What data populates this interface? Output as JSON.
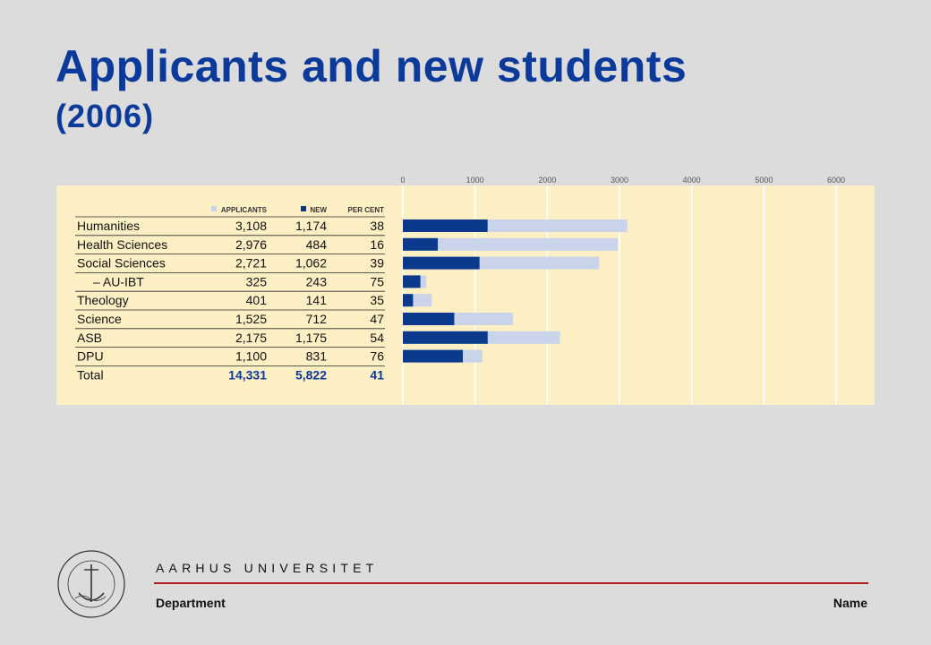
{
  "slide": {
    "title": "Applicants and new students",
    "subtitle": "(2006)"
  },
  "footer": {
    "university": "AARHUS UNIVERSITET",
    "department": "Department",
    "name": "Name",
    "seal_text": "SOLIDUM PETIT IN PROFUNDIS · UNIVERSITAS ARHUSIENSIS",
    "accent_color": "#b11d1d"
  },
  "chart_data": {
    "type": "bar",
    "orientation": "horizontal",
    "stacked_overlay": true,
    "column_headers": [
      "APPLICANTS",
      "NEW",
      "PER CENT"
    ],
    "categories": [
      "Humanities",
      "Health Sciences",
      "Social Sciences",
      "– AU-IBT",
      "Theology",
      "Science",
      "ASB",
      "DPU"
    ],
    "series": [
      {
        "name": "APPLICANTS",
        "color": "#c9d3ea",
        "values": [
          3108,
          2976,
          2721,
          325,
          401,
          1525,
          2175,
          1100
        ]
      },
      {
        "name": "NEW",
        "color": "#0b3a8c",
        "values": [
          1174,
          484,
          1062,
          243,
          141,
          712,
          1175,
          831
        ]
      }
    ],
    "table": {
      "applicants": [
        "3,108",
        "2,976",
        "2,721",
        "325",
        "401",
        "1,525",
        "2,175",
        "1,100"
      ],
      "new": [
        "1,174",
        "484",
        "1,062",
        "243",
        "141",
        "712",
        "1,175",
        "831"
      ],
      "per_cent": [
        "38",
        "16",
        "39",
        "75",
        "35",
        "47",
        "54",
        "76"
      ]
    },
    "total": {
      "label": "Total",
      "applicants": "14,331",
      "new": "5,822",
      "per_cent": "41"
    },
    "x_ticks": [
      0,
      1000,
      2000,
      3000,
      4000,
      5000,
      6000
    ],
    "xlim": [
      0,
      6000
    ],
    "grid": true,
    "legend": "top",
    "background_color": "#fdefc4",
    "total_color": "#0b3a9a"
  }
}
